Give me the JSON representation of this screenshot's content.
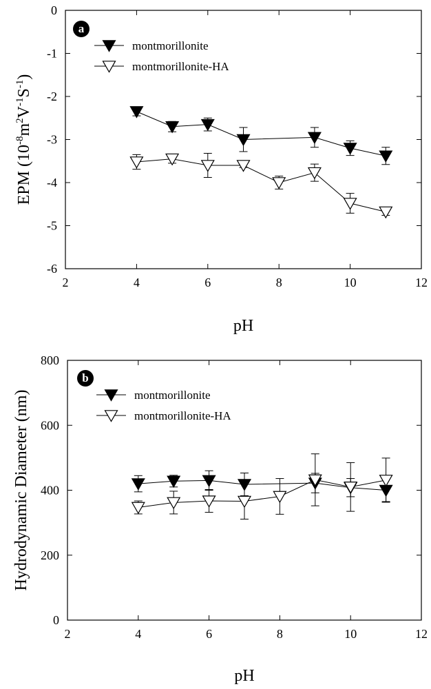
{
  "chart_data": [
    {
      "type": "line",
      "panel_label": "a",
      "xlabel": "pH",
      "ylabel_main": "EPM (10",
      "ylabel_sup1": "-8",
      "ylabel_mid1": "m",
      "ylabel_sup2": "2",
      "ylabel_mid2": "V",
      "ylabel_sup3": "-1",
      "ylabel_mid3": "S",
      "ylabel_sup4": "-1",
      "ylabel_end": ")",
      "xlim": [
        2,
        12
      ],
      "ylim": [
        -6,
        0
      ],
      "xticks": [
        2,
        4,
        6,
        8,
        10,
        12
      ],
      "yticks": [
        0,
        -1,
        -2,
        -3,
        -4,
        -5,
        -6
      ],
      "x": [
        4,
        5,
        6,
        7,
        9,
        10,
        11
      ],
      "series": [
        {
          "name": "montmorillonite",
          "marker": "filled-down-triangle",
          "x": [
            4,
            5,
            6,
            7,
            9,
            10,
            11
          ],
          "values": [
            -2.35,
            -2.7,
            -2.65,
            -3.0,
            -2.95,
            -3.2,
            -3.38
          ],
          "errors": [
            0.1,
            0.12,
            0.15,
            0.28,
            0.23,
            0.17,
            0.2
          ]
        },
        {
          "name": "montmorillonite-HA",
          "marker": "open-down-triangle",
          "x": [
            4,
            5,
            6,
            7,
            8,
            9,
            10,
            11
          ],
          "values": [
            -3.52,
            -3.45,
            -3.6,
            -3.6,
            -4.0,
            -3.77,
            -4.48,
            -4.68
          ],
          "errors": [
            0.17,
            0.1,
            0.28,
            0.05,
            0.15,
            0.2,
            0.23,
            0.08
          ]
        }
      ],
      "legend_position": "top-left",
      "grid": false
    },
    {
      "type": "line",
      "panel_label": "b",
      "xlabel": "pH",
      "ylabel": "Hydrodynamic Diameter (nm)",
      "xlim": [
        2,
        12
      ],
      "ylim": [
        0,
        800
      ],
      "xticks": [
        2,
        4,
        6,
        8,
        10,
        12
      ],
      "yticks": [
        0,
        200,
        400,
        600,
        800
      ],
      "series": [
        {
          "name": "montmorillonite",
          "marker": "filled-down-triangle",
          "x": [
            4,
            5,
            6,
            7,
            9,
            10,
            11
          ],
          "values": [
            420,
            428,
            430,
            418,
            422,
            408,
            400
          ],
          "errors": [
            25,
            18,
            30,
            35,
            30,
            28,
            35
          ]
        },
        {
          "name": "montmorillonite-HA",
          "marker": "open-down-triangle",
          "x": [
            4,
            5,
            6,
            7,
            8,
            9,
            10,
            11
          ],
          "values": [
            347,
            362,
            367,
            366,
            381,
            432,
            410,
            431
          ],
          "errors": [
            20,
            35,
            35,
            55,
            55,
            80,
            75,
            68
          ]
        }
      ],
      "legend_position": "top-left",
      "grid": false
    }
  ]
}
